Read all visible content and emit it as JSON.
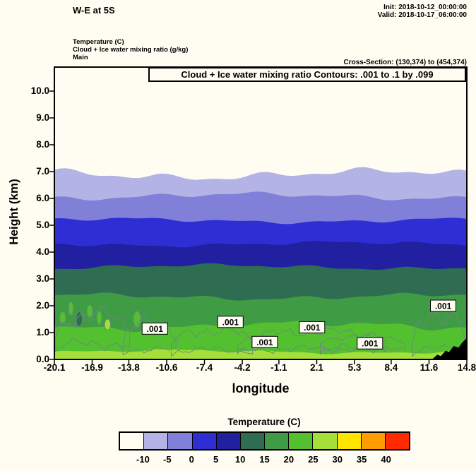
{
  "header": {
    "title": "W-E at 5S",
    "init": "Init: 2018-10-12_00:00:00",
    "valid": "Valid: 2018-10-17_06:00:00",
    "field_temperature": "Temperature  (C)",
    "field_cloud": "Cloud + Ice water mixing ratio   (g/kg)",
    "field_model": "Main",
    "cross_section": "Cross-Section: (130,374) to (454,374)"
  },
  "chart_data": {
    "type": "heatmap",
    "title": "Cloud + Ice water mixing ratio Contours: .001 to .1 by .099",
    "xlabel": "longitude",
    "ylabel": "Height (km)",
    "xlim": [
      -20.1,
      14.8
    ],
    "ylim": [
      0,
      10.9
    ],
    "x_tick_labels": [
      "-20.1",
      "-16.9",
      "-13.8",
      "-10.6",
      "-7.4",
      "-4.2",
      "-1.1",
      "2.1",
      "5.3",
      "8.4",
      "11.6",
      "14.8"
    ],
    "y_tick_labels": [
      "0.0",
      "1.0",
      "2.0",
      "3.0",
      "4.0",
      "5.0",
      "6.0",
      "7.0",
      "8.0",
      "9.0",
      "10.0"
    ],
    "background_color": "#fffdf2",
    "temperature_bands": [
      {
        "range_c": "-10 to -5",
        "color": "#b3b3e6",
        "top_km": 6.9,
        "wave_km": 0.18
      },
      {
        "range_c": "-5 to 0",
        "color": "#8080d8",
        "top_km": 6.08,
        "wave_km": 0.12
      },
      {
        "range_c": "0 to 5",
        "color": "#2e2ed4",
        "top_km": 5.18,
        "wave_km": 0.09
      },
      {
        "range_c": "5 to 10",
        "color": "#2020a0",
        "top_km": 4.3,
        "wave_km": 0.09
      },
      {
        "range_c": "10 to 15",
        "color": "#2f6d52",
        "top_km": 3.45,
        "wave_km": 0.09
      },
      {
        "range_c": "15 to 20",
        "color": "#3f9c45",
        "top_km": 2.34,
        "wave_km": 0.11
      },
      {
        "range_c": "20 to 25",
        "color": "#53c12f",
        "top_km": 1.25,
        "wave_km": 0.15
      },
      {
        "range_c": "25 to 30",
        "color": "#a5e03a",
        "top_km": 0.29,
        "wave_km": 0.07
      }
    ],
    "cloud_contours": {
      "contour_range": ".001 to .1 by .099",
      "line_color": "#6a8a7c",
      "value_labels": [
        {
          "text": ".001",
          "lon": -11.6,
          "height_km": 1.15
        },
        {
          "text": ".001",
          "lon": -5.2,
          "height_km": 1.4
        },
        {
          "text": ".001",
          "lon": -2.3,
          "height_km": 0.65
        },
        {
          "text": ".001",
          "lon": 1.7,
          "height_km": 1.2
        },
        {
          "text": ".001",
          "lon": 6.6,
          "height_km": 0.6
        },
        {
          "text": ".001",
          "lon": 12.8,
          "height_km": 2.0
        }
      ],
      "regions": [
        {
          "lon_min": -20.0,
          "lon_max": -13.6,
          "base_km": 0.75,
          "top_km": 2.05
        },
        {
          "lon_min": -14.3,
          "lon_max": -9.6,
          "base_km": 0.5,
          "top_km": 1.7
        },
        {
          "lon_min": -10.2,
          "lon_max": -3.2,
          "base_km": 0.45,
          "top_km": 1.35
        },
        {
          "lon_min": -4.6,
          "lon_max": 8.2,
          "base_km": 0.5,
          "top_km": 1.25
        },
        {
          "lon_min": 2.4,
          "lon_max": 9.6,
          "base_km": 0.55,
          "top_km": 1.0
        },
        {
          "lon_min": 10.2,
          "lon_max": 14.7,
          "base_km": 0.5,
          "top_km": 2.25
        }
      ]
    },
    "convective_patches": [
      {
        "lon": -19.4,
        "km": 1.55,
        "w_deg": 0.5,
        "h_km": 0.45,
        "color": "#53c12f"
      },
      {
        "lon": -18.7,
        "km": 1.9,
        "w_deg": 0.4,
        "h_km": 0.5,
        "color": "#53c12f"
      },
      {
        "lon": -18.0,
        "km": 1.5,
        "w_deg": 0.55,
        "h_km": 0.55,
        "color": "#2f6d52"
      },
      {
        "lon": -17.1,
        "km": 1.8,
        "w_deg": 0.45,
        "h_km": 0.45,
        "color": "#53c12f"
      },
      {
        "lon": -16.3,
        "km": 1.55,
        "w_deg": 0.4,
        "h_km": 0.5,
        "color": "#53c12f"
      },
      {
        "lon": -15.6,
        "km": 1.3,
        "w_deg": 0.5,
        "h_km": 0.4,
        "color": "#a5e03a"
      },
      {
        "lon": -13.1,
        "km": 1.5,
        "w_deg": 0.6,
        "h_km": 0.6,
        "color": "#53c12f"
      },
      {
        "lon": -12.5,
        "km": 1.2,
        "w_deg": 0.4,
        "h_km": 0.4,
        "color": "#2f6d52"
      }
    ],
    "terrain_profile": [
      [
        11.9,
        0.02
      ],
      [
        12.3,
        0.18
      ],
      [
        12.6,
        0.12
      ],
      [
        13.0,
        0.32
      ],
      [
        13.3,
        0.28
      ],
      [
        13.7,
        0.5
      ],
      [
        14.1,
        0.44
      ],
      [
        14.4,
        0.62
      ],
      [
        14.8,
        0.8
      ]
    ],
    "terrain_color": "#000000",
    "colorbar": {
      "title": "Temperature  (C)",
      "tick_labels": [
        "-10",
        "-5",
        "0",
        "5",
        "10",
        "15",
        "20",
        "25",
        "30",
        "35",
        "40"
      ],
      "cell_colors": [
        "#fffdf2",
        "#b3b3e6",
        "#8080d8",
        "#2e2ed4",
        "#2020a0",
        "#2f6d52",
        "#3f9c45",
        "#53c12f",
        "#a5e03a",
        "#ffe400",
        "#ff9c00",
        "#ff2a00"
      ]
    }
  }
}
